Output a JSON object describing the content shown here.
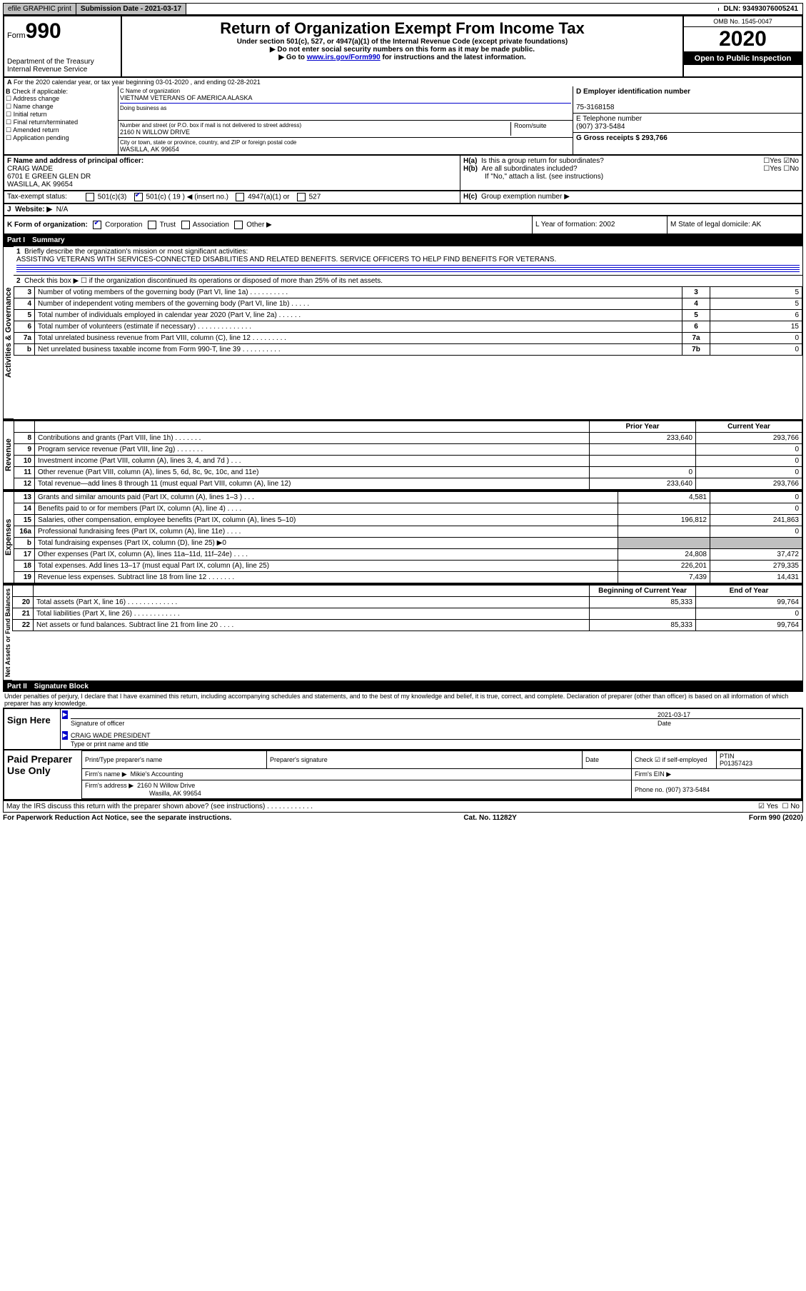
{
  "topbar": {
    "efile": "efile GRAPHIC print",
    "submission": "Submission Date - 2021-03-17",
    "dln": "DLN: 93493076005241"
  },
  "header": {
    "form_label": "Form",
    "form_no": "990",
    "dept": "Department of the Treasury",
    "irs": "Internal Revenue Service",
    "title": "Return of Organization Exempt From Income Tax",
    "subtitle": "Under section 501(c), 527, or 4947(a)(1) of the Internal Revenue Code (except private foundations)",
    "note1": "Do not enter social security numbers on this form as it may be made public.",
    "note2_pre": "Go to ",
    "note2_link": "www.irs.gov/Form990",
    "note2_post": " for instructions and the latest information.",
    "omb": "OMB No. 1545-0047",
    "year": "2020",
    "open": "Open to Public Inspection"
  },
  "line_a": "For the 2020 calendar year, or tax year beginning 03-01-2020   , and ending 02-28-2021",
  "block_b": {
    "label": "Check if applicable:",
    "opts": [
      "Address change",
      "Name change",
      "Initial return",
      "Final return/terminated",
      "Amended return",
      "Application pending"
    ]
  },
  "block_c": {
    "name_label": "C Name of organization",
    "name": "VIETNAM VETERANS OF AMERICA ALASKA",
    "dba_label": "Doing business as",
    "addr_label": "Number and street (or P.O. box if mail is not delivered to street address)",
    "room_label": "Room/suite",
    "addr": "2160 N WILLOW DRIVE",
    "city_label": "City or town, state or province, country, and ZIP or foreign postal code",
    "city": "WASILLA, AK  99654"
  },
  "block_d": {
    "label": "D Employer identification number",
    "val": "75-3168158"
  },
  "block_e": {
    "label": "E Telephone number",
    "val": "(907) 373-5484"
  },
  "block_g": {
    "label": "G Gross receipts $ 293,766"
  },
  "block_f": {
    "label": "F  Name and address of principal officer:",
    "name": "CRAIG WADE",
    "addr1": "6701 E GREEN GLEN DR",
    "addr2": "WASILLA, AK  99654"
  },
  "block_h": {
    "ha": "Is this a group return for subordinates?",
    "hb": "Are all subordinates included?",
    "hb2": "If \"No,\" attach a list. (see instructions)",
    "hc": "Group exemption number ▶"
  },
  "tax_exempt": {
    "label": "Tax-exempt status:",
    "c3": "501(c)(3)",
    "c": "501(c) ( 19 ) ◀ (insert no.)",
    "a1": "4947(a)(1) or",
    "t527": "527"
  },
  "website": {
    "label": "Website: ▶",
    "val": "N/A"
  },
  "line_k": {
    "label": "K Form of organization:",
    "corp": "Corporation",
    "trust": "Trust",
    "assoc": "Association",
    "other": "Other ▶"
  },
  "line_l": {
    "label": "L Year of formation: 2002"
  },
  "line_m": {
    "label": "M State of legal domicile: AK"
  },
  "part1": {
    "num": "Part I",
    "title": "Summary"
  },
  "summary": {
    "l1_label": "Briefly describe the organization's mission or most significant activities:",
    "l1_text": "ASSISTING VETERANS WITH SERVICES-CONNECTED DISABILITIES AND RELATED BENEFITS. SERVICE OFFICERS TO HELP FIND BENEFITS FOR VETERANS.",
    "l2": "Check this box ▶ ☐  if the organization discontinued its operations or disposed of more than 25% of its net assets.",
    "rows_ag": [
      {
        "n": "3",
        "d": "Number of voting members of the governing body (Part VI, line 1a)  .   .   .   .   .   .   .   .   .   .",
        "b": "3",
        "v": "5"
      },
      {
        "n": "4",
        "d": "Number of independent voting members of the governing body (Part VI, line 1b)   .   .   .   .   .",
        "b": "4",
        "v": "5"
      },
      {
        "n": "5",
        "d": "Total number of individuals employed in calendar year 2020 (Part V, line 2a)   .   .   .   .   .   .",
        "b": "5",
        "v": "6"
      },
      {
        "n": "6",
        "d": "Total number of volunteers (estimate if necessary)    .   .   .   .   .   .   .   .   .   .   .   .   .   .",
        "b": "6",
        "v": "15"
      },
      {
        "n": "7a",
        "d": "Total unrelated business revenue from Part VIII, column (C), line 12   .   .   .   .   .   .   .   .   .",
        "b": "7a",
        "v": "0"
      },
      {
        "n": "b",
        "d": "Net unrelated business taxable income from Form 990-T, line 39   .   .   .   .   .   .   .   .   .   .",
        "b": "7b",
        "v": "0"
      }
    ],
    "col_prior": "Prior Year",
    "col_current": "Current Year",
    "rows_rev": [
      {
        "n": "8",
        "d": "Contributions and grants (Part VIII, line 1h)   .   .   .   .   .   .   .",
        "p": "233,640",
        "c": "293,766"
      },
      {
        "n": "9",
        "d": "Program service revenue (Part VIII, line 2g)   .   .   .   .   .   .   .",
        "p": "",
        "c": "0"
      },
      {
        "n": "10",
        "d": "Investment income (Part VIII, column (A), lines 3, 4, and 7d )   .   .   .",
        "p": "",
        "c": "0"
      },
      {
        "n": "11",
        "d": "Other revenue (Part VIII, column (A), lines 5, 6d, 8c, 9c, 10c, and 11e)",
        "p": "0",
        "c": "0"
      },
      {
        "n": "12",
        "d": "Total revenue—add lines 8 through 11 (must equal Part VIII, column (A), line 12)",
        "p": "233,640",
        "c": "293,766"
      }
    ],
    "rows_exp": [
      {
        "n": "13",
        "d": "Grants and similar amounts paid (Part IX, column (A), lines 1–3 )   .   .   .",
        "p": "4,581",
        "c": "0"
      },
      {
        "n": "14",
        "d": "Benefits paid to or for members (Part IX, column (A), line 4)   .   .   .   .",
        "p": "",
        "c": "0"
      },
      {
        "n": "15",
        "d": "Salaries, other compensation, employee benefits (Part IX, column (A), lines 5–10)",
        "p": "196,812",
        "c": "241,863"
      },
      {
        "n": "16a",
        "d": "Professional fundraising fees (Part IX, column (A), line 11e)   .   .   .   .",
        "p": "",
        "c": "0"
      },
      {
        "n": "b",
        "d": "Total fundraising expenses (Part IX, column (D), line 25) ▶0",
        "p": "shade",
        "c": "shade"
      },
      {
        "n": "17",
        "d": "Other expenses (Part IX, column (A), lines 11a–11d, 11f–24e)   .   .   .   .",
        "p": "24,808",
        "c": "37,472"
      },
      {
        "n": "18",
        "d": "Total expenses. Add lines 13–17 (must equal Part IX, column (A), line 25)",
        "p": "226,201",
        "c": "279,335"
      },
      {
        "n": "19",
        "d": "Revenue less expenses. Subtract line 18 from line 12   .   .   .   .   .   .   .",
        "p": "7,439",
        "c": "14,431"
      }
    ],
    "col_begin": "Beginning of Current Year",
    "col_end": "End of Year",
    "rows_net": [
      {
        "n": "20",
        "d": "Total assets (Part X, line 16)   .   .   .   .   .   .   .   .   .   .   .   .   .",
        "p": "85,333",
        "c": "99,764"
      },
      {
        "n": "21",
        "d": "Total liabilities (Part X, line 26)  .   .   .   .   .   .   .   .   .   .   .   .",
        "p": "",
        "c": "0"
      },
      {
        "n": "22",
        "d": "Net assets or fund balances. Subtract line 21 from line 20   .   .   .   .",
        "p": "85,333",
        "c": "99,764"
      }
    ]
  },
  "vert": {
    "ag": "Activities & Governance",
    "rev": "Revenue",
    "exp": "Expenses",
    "net": "Net Assets or Fund Balances"
  },
  "part2": {
    "num": "Part II",
    "title": "Signature Block"
  },
  "sig_decl": "Under penalties of perjury, I declare that I have examined this return, including accompanying schedules and statements, and to the best of my knowledge and belief, it is true, correct, and complete. Declaration of preparer (other than officer) is based on all information of which preparer has any knowledge.",
  "sign": {
    "here": "Sign Here",
    "sig_officer": "Signature of officer",
    "date_l": "Date",
    "date": "2021-03-17",
    "name": "CRAIG WADE  PRESIDENT",
    "name_l": "Type or print name and title"
  },
  "paid": {
    "left": "Paid Preparer Use Only",
    "h1": "Print/Type preparer's name",
    "h2": "Preparer's signature",
    "h3": "Date",
    "check": "Check ☑ if self-employed",
    "ptin_l": "PTIN",
    "ptin": "P01357423",
    "firm_l": "Firm's name    ▶",
    "firm": "Mikie's Accounting",
    "ein_l": "Firm's EIN ▶",
    "addr_l": "Firm's address ▶",
    "addr1": "2160 N Willow Drive",
    "addr2": "Wasilla, AK  99654",
    "phone_l": "Phone no. (907) 373-5484"
  },
  "discuss": "May the IRS discuss this return with the preparer shown above? (see instructions)   .   .   .   .   .   .   .   .   .   .   .   .",
  "footer": {
    "l": "For Paperwork Reduction Act Notice, see the separate instructions.",
    "c": "Cat. No. 11282Y",
    "r": "Form 990 (2020)"
  }
}
